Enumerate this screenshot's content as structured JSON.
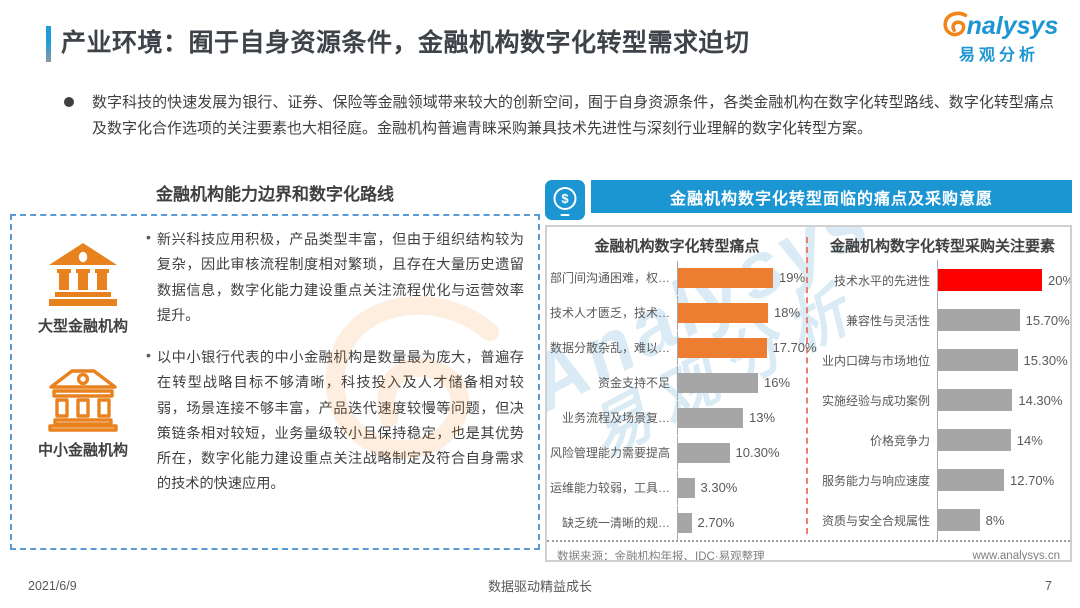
{
  "header": {
    "title": "产业环境：囿于自身资源条件，金融机构数字化转型需求迫切",
    "logo": {
      "brand_rest": "nalysys",
      "brand_cn": "易观分析",
      "brand_color": "#1b96d3",
      "swirl_color": "#f08519"
    }
  },
  "intro": {
    "text": "数字科技的快速发展为银行、证券、保险等金融领域带来较大的创新空间，囿于自身资源条件，各类金融机构在数字化转型路线、数字化转型痛点及数字化合作选项的关注要素也大相径庭。金融机构普遍青睐采购兼具技术先进性与深刻行业理解的数字化转型方案。"
  },
  "left_panel": {
    "title": "金融机构能力边界和数字化路线",
    "items": [
      {
        "icon": "bank-solid-icon",
        "label": "大型金融机构",
        "bullet": "•",
        "text": "新兴科技应用积极，产品类型丰富，但由于组织结构较为复杂，因此审核流程制度相对繁琐，且存在大量历史遗留数据信息，数字化能力建设重点关注流程优化与运营效率提升。"
      },
      {
        "icon": "bank-outline-icon",
        "label": "中小金融机构",
        "bullet": "•",
        "text": "以中小银行代表的中小金融机构是数量最为庞大，普遍存在转型战略目标不够清晰，科技投入及人才储备相对较弱，场景连接不够丰富，产品迭代速度较慢等问题，但决策链条相对较短，业务量级较小且保持稳定，也是其优势所在，数字化能力建设重点关注战略制定及符合自身需求的技术的快速应用。"
      }
    ]
  },
  "right_panel": {
    "banner": "金融机构数字化转型面临的痛点及采购意愿",
    "banner_color": "#1b96d3",
    "icon": "money-phone-icon",
    "icon_symbol": "$",
    "source_note": "数据来源：金融机构年报、IDC·易观整理",
    "website": "www.analysys.cn"
  },
  "watermark": {
    "text1": "Analysys",
    "text2": "易观分析"
  },
  "chart_data": [
    {
      "type": "bar",
      "orientation": "horizontal",
      "title": "金融机构数字化转型痛点",
      "categories": [
        "部门间沟通困难，权…",
        "技术人才匮乏，技术…",
        "数据分散杂乱，难以…",
        "资金支持不足",
        "业务流程及场景复…",
        "风险管理能力需要提高",
        "运维能力较弱，工具…",
        "缺乏统一清晰的规…"
      ],
      "values": [
        19,
        18,
        17.7,
        16,
        13,
        10.3,
        3.3,
        2.7
      ],
      "value_labels": [
        "19%",
        "18%",
        "17.70%",
        "16%",
        "13%",
        "10.30%",
        "3.30%",
        "2.70%"
      ],
      "bar_colors": [
        "#ed7d31",
        "#ed7d31",
        "#ed7d31",
        "#a6a6a6",
        "#a6a6a6",
        "#a6a6a6",
        "#a6a6a6",
        "#a6a6a6"
      ],
      "xlim": [
        0,
        20
      ],
      "grid": false,
      "legend": false
    },
    {
      "type": "bar",
      "orientation": "horizontal",
      "title": "金融机构数字化转型采购关注要素",
      "categories": [
        "技术水平的先进性",
        "兼容性与灵活性",
        "业内口碑与市场地位",
        "实施经验与成功案例",
        "价格竞争力",
        "服务能力与响应速度",
        "资质与安全合规属性"
      ],
      "values": [
        20,
        15.7,
        15.3,
        14.3,
        14,
        12.7,
        8
      ],
      "value_labels": [
        "20%",
        "15.70%",
        "15.30%",
        "14.30%",
        "14%",
        "12.70%",
        "8%"
      ],
      "bar_colors": [
        "#ff0000",
        "#a6a6a6",
        "#a6a6a6",
        "#a6a6a6",
        "#a6a6a6",
        "#a6a6a6",
        "#a6a6a6"
      ],
      "xlim": [
        0,
        20
      ],
      "grid": false,
      "legend": false
    }
  ],
  "footer": {
    "date": "2021/6/9",
    "center": "数据驱动精益成长",
    "page": "7"
  }
}
